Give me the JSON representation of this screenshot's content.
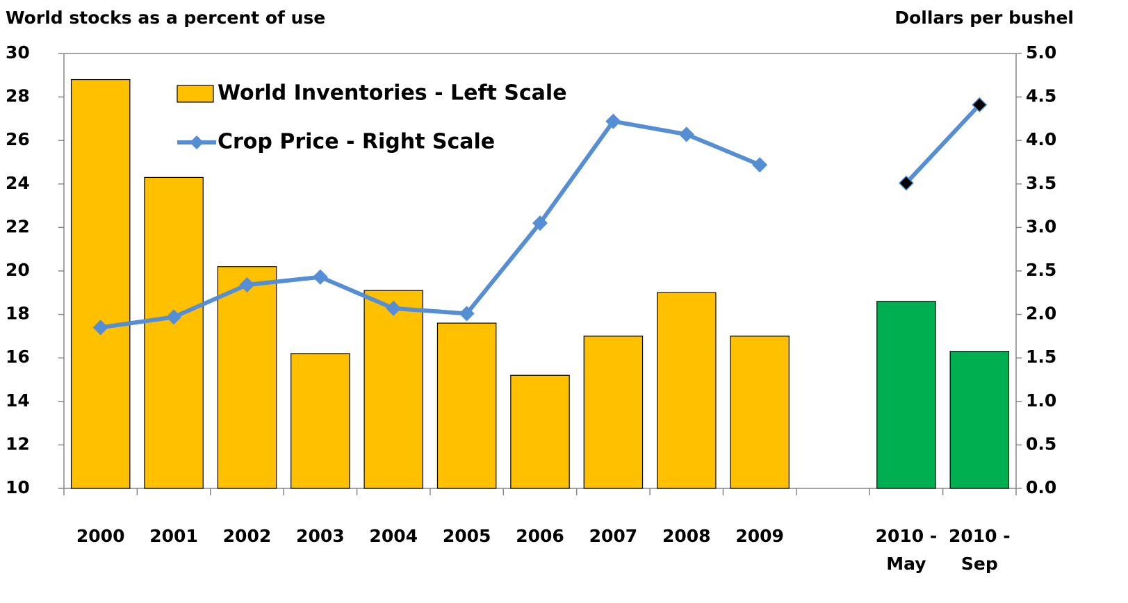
{
  "chart_data": {
    "type": "bar",
    "y_title": "World stocks as a percent of use",
    "y2_title": "Dollars per bushel",
    "categories": [
      "2000",
      "2001",
      "2002",
      "2003",
      "2004",
      "2005",
      "2006",
      "2007",
      "2008",
      "2009",
      null,
      "2010 - May",
      "2010 - Sep"
    ],
    "series": [
      {
        "name": "World Inventories - Left Scale",
        "type": "bar",
        "color": "#ffc000",
        "colors": [
          "#ffc000",
          "#ffc000",
          "#ffc000",
          "#ffc000",
          "#ffc000",
          "#ffc000",
          "#ffc000",
          "#ffc000",
          "#ffc000",
          "#ffc000",
          null,
          "#00b050",
          "#00b050"
        ],
        "values": [
          28.8,
          24.3,
          20.2,
          16.2,
          19.1,
          17.6,
          15.2,
          17.0,
          19.0,
          17.0,
          null,
          18.6,
          16.3
        ]
      },
      {
        "name": "Crop Price - Right Scale",
        "type": "line",
        "axis": "y2",
        "color": "#558ed5",
        "point_colors": [
          "#558ed5",
          "#558ed5",
          "#558ed5",
          "#558ed5",
          "#558ed5",
          "#558ed5",
          "#558ed5",
          "#558ed5",
          "#558ed5",
          "#558ed5",
          null,
          "#000000",
          "#000000"
        ],
        "values": [
          1.85,
          1.97,
          2.34,
          2.43,
          2.07,
          2.01,
          3.05,
          4.22,
          4.07,
          3.72,
          null,
          3.51,
          4.41
        ]
      }
    ],
    "ylim": [
      10,
      30
    ],
    "yticks": [
      10,
      12,
      14,
      16,
      18,
      20,
      22,
      24,
      26,
      28,
      30
    ],
    "y2lim": [
      0,
      5
    ],
    "y2ticks": [
      {
        "value": 0,
        "label": "0.0"
      },
      0.5,
      {
        "value": 1,
        "label": "1.0"
      },
      1.5,
      {
        "value": 2,
        "label": "2.0"
      },
      2.5,
      {
        "value": 3,
        "label": "3.0"
      },
      3.5,
      {
        "value": 4,
        "label": "4.0"
      },
      4.5,
      {
        "value": 5,
        "label": "5.0"
      }
    ],
    "grid": false,
    "legend": "top-left"
  }
}
